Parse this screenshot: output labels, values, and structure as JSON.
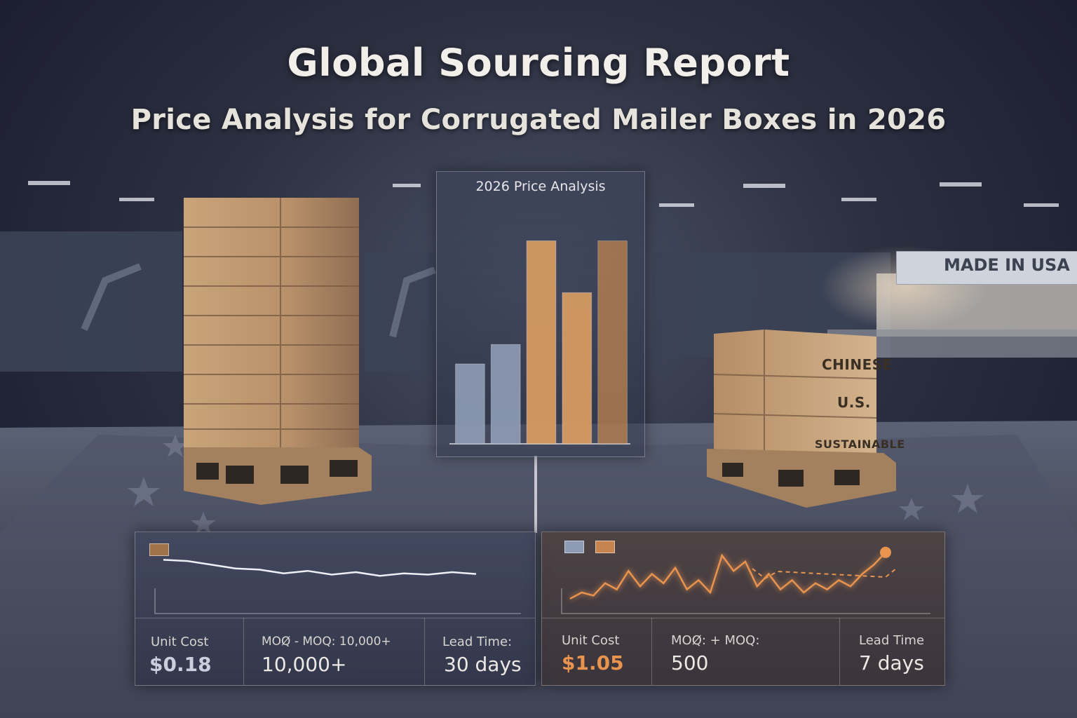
{
  "header": {
    "title": "Global Sourcing Report",
    "subtitle": "Price Analysis for Corrugated Mailer Boxes in 2026"
  },
  "price_chart": {
    "title": "2026 Price Analysis"
  },
  "chart_data": {
    "type": "bar",
    "title": "2026 Price Analysis",
    "categories": [
      "",
      "",
      "",
      "",
      ""
    ],
    "values": [
      0.37,
      0.46,
      0.94,
      0.7,
      0.94
    ],
    "colors": [
      "#8e9bb5",
      "#8e9bb5",
      "#d99d63",
      "#d99d63",
      "#c0844e"
    ],
    "ylim": [
      0,
      1
    ]
  },
  "scene": {
    "box_labels": [
      "CHINESE",
      "U.S.",
      "SUSTAINABLE"
    ],
    "sign_text": "MADE IN USA"
  },
  "panels": {
    "left": {
      "unit_cost_label": "Unit Cost",
      "unit_cost_value": "$0.18",
      "moq_label": "MOQ̸ - MOQ: 10,000+",
      "moq_value": "10,000+",
      "lead_time_label": "Lead Time:",
      "lead_time_value": "30 days",
      "trend": [
        0.78,
        0.76,
        0.7,
        0.64,
        0.62,
        0.56,
        0.6,
        0.54,
        0.58,
        0.52,
        0.56,
        0.54,
        0.58,
        0.55
      ]
    },
    "right": {
      "unit_cost_label": "Unit Cost",
      "unit_cost_value": "$1.05",
      "moq_label": "MOQ̸:  +  MOQ:",
      "moq_value": "500",
      "lead_time_label": "Lead Time",
      "lead_time_value": "7 days",
      "trend": [
        0.15,
        0.25,
        0.2,
        0.4,
        0.3,
        0.6,
        0.35,
        0.55,
        0.4,
        0.65,
        0.3,
        0.45,
        0.25,
        0.85,
        0.6,
        0.75,
        0.35,
        0.55,
        0.3,
        0.45,
        0.25,
        0.4,
        0.3,
        0.45,
        0.35,
        0.55,
        0.7,
        0.9
      ],
      "accent": "#e8944e"
    }
  },
  "colors": {
    "accent_orange": "#d99d63",
    "accent_blue": "#8e9bb5"
  }
}
